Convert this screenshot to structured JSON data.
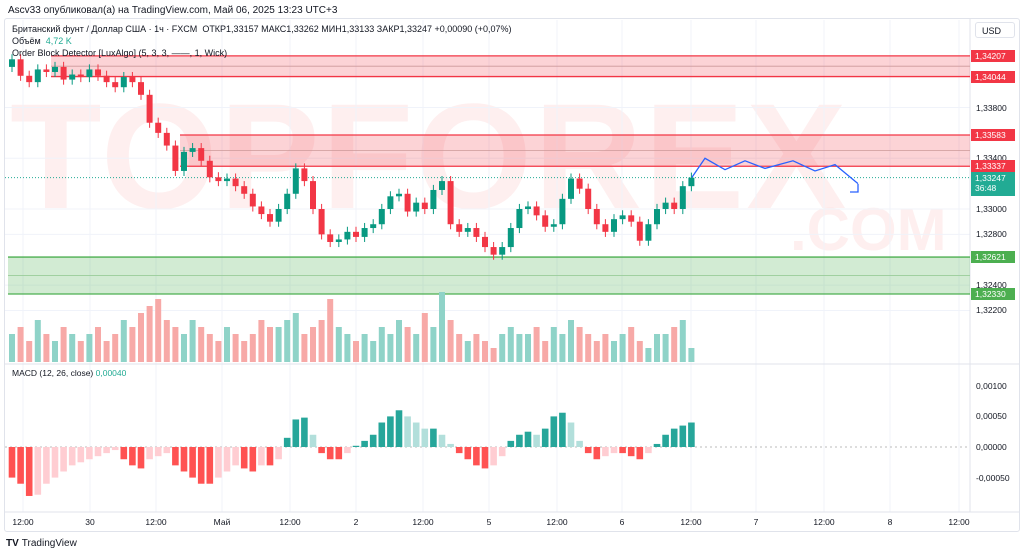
{
  "published": "Ascv33 опубликовал(а) на TradingView.com, Май 06, 2025 13:23 UTC+3",
  "legend": {
    "symbol": "Британский фунт / Доллар США · 1ч · FXCM",
    "ohlc": "ОТКР1,33157  МАКС1,33262  МИН1,33133  ЗАКР1,33247  +0,00090 (+0,07%)",
    "volume_label": "Объём",
    "volume_value": "4,72 K",
    "indicator": "Order Block Detector [LuxAlgo] (5, 3, 3, ——, 1, Wick)",
    "macd_label": "MACD (12, 26, close)",
    "macd_value": "0,00040"
  },
  "currency": "USD",
  "watermark": "TOPFOREX",
  "watermark2": ".COM",
  "price_axis": [
    "1,33800",
    "1,33400",
    "1,33000",
    "1,32800",
    "1,32400",
    "1,32200"
  ],
  "price_axis_values": [
    1.338,
    1.334,
    1.33,
    1.328,
    1.324,
    1.322
  ],
  "badges": [
    {
      "label": "1,34207",
      "value": 1.34207,
      "color": "#f23645"
    },
    {
      "label": "1,34044",
      "value": 1.34044,
      "color": "#f23645"
    },
    {
      "label": "1,33583",
      "value": 1.33583,
      "color": "#f23645"
    },
    {
      "label": "1,33337",
      "value": 1.33337,
      "color": "#f23645"
    },
    {
      "label": "1,32621",
      "value": 1.32621,
      "color": "#4caf50"
    },
    {
      "label": "1,32330",
      "value": 1.3233,
      "color": "#4caf50"
    }
  ],
  "last_price": {
    "label": "1,33247",
    "countdown": "36:48",
    "value": 1.33247,
    "color": "#22ab94"
  },
  "order_blocks": [
    {
      "type": "bearish",
      "top": 1.34207,
      "bottom": 1.34044,
      "start_bar": 5
    },
    {
      "type": "bearish",
      "top": 1.33583,
      "bottom": 1.33337,
      "start_bar": 20
    },
    {
      "type": "bullish",
      "top": 1.32621,
      "bottom": 1.3233,
      "start_bar": 0
    }
  ],
  "macd_axis": [
    "0,00100",
    "0,00050",
    "0,00000",
    "-0,00050"
  ],
  "macd_axis_values": [
    0.001,
    0.0005,
    0,
    -0.0005
  ],
  "time_axis": [
    "12:00",
    "30",
    "12:00",
    "Май",
    "12:00",
    "2",
    "12:00",
    "5",
    "12:00",
    "6",
    "12:00",
    "7",
    "12:00",
    "8",
    "12:00"
  ],
  "chart_data": {
    "type": "candlestick",
    "first_open": 1.3412,
    "close": [
      1.3418,
      1.3405,
      1.34,
      1.341,
      1.3408,
      1.3412,
      1.3402,
      1.3406,
      1.3404,
      1.341,
      1.3405,
      1.34,
      1.3396,
      1.3404,
      1.34,
      1.339,
      1.3368,
      1.336,
      1.335,
      1.333,
      1.3345,
      1.3348,
      1.3338,
      1.3325,
      1.3322,
      1.3324,
      1.3318,
      1.3312,
      1.3302,
      1.3296,
      1.329,
      1.33,
      1.3312,
      1.3332,
      1.3322,
      1.33,
      1.328,
      1.3274,
      1.3276,
      1.3282,
      1.3278,
      1.3285,
      1.3288,
      1.33,
      1.331,
      1.3312,
      1.3298,
      1.3305,
      1.33,
      1.3315,
      1.3322,
      1.3288,
      1.3282,
      1.3285,
      1.3278,
      1.327,
      1.3264,
      1.327,
      1.3285,
      1.33,
      1.3302,
      1.3295,
      1.3286,
      1.3288,
      1.3308,
      1.3324,
      1.3316,
      1.33,
      1.3288,
      1.3282,
      1.3292,
      1.3295,
      1.329,
      1.3275,
      1.3288,
      1.33,
      1.3305,
      1.33,
      1.3318,
      1.33247
    ],
    "volume": [
      4,
      5,
      3,
      6,
      4,
      3,
      5,
      4,
      3,
      4,
      5,
      3,
      4,
      6,
      5,
      7,
      8,
      9,
      6,
      5,
      4,
      6,
      5,
      4,
      3,
      5,
      4,
      3,
      4,
      6,
      5,
      5,
      6,
      7,
      4,
      5,
      6,
      9,
      5,
      4,
      3,
      4,
      3,
      5,
      4,
      6,
      5,
      4,
      7,
      5,
      10,
      6,
      4,
      3,
      4,
      3,
      2,
      4,
      5,
      4,
      4,
      5,
      3,
      5,
      4,
      6,
      5,
      4,
      3,
      4,
      3,
      4,
      5,
      3,
      2,
      4,
      4,
      5,
      6,
      2
    ],
    "macd_hist": [
      -0.0005,
      -0.0006,
      -0.0008,
      -0.00078,
      -0.0006,
      -0.0005,
      -0.0004,
      -0.0003,
      -0.00025,
      -0.0002,
      -0.00015,
      -0.0001,
      -5e-05,
      -0.0002,
      -0.0003,
      -0.00035,
      -0.0002,
      -0.00015,
      -0.0001,
      -0.0003,
      -0.0004,
      -0.0005,
      -0.0006,
      -0.0006,
      -0.0005,
      -0.0004,
      -0.0003,
      -0.00035,
      -0.0004,
      -0.0003,
      -0.0003,
      -0.0002,
      0.00015,
      0.00045,
      0.00048,
      0.0002,
      -0.0001,
      -0.0002,
      -0.0002,
      -0.0001,
      2e-05,
      0.0001,
      0.0002,
      0.0004,
      0.0005,
      0.0006,
      0.0005,
      0.0004,
      0.0003,
      0.0003,
      0.0002,
      5e-05,
      -0.0001,
      -0.0002,
      -0.0003,
      -0.00035,
      -0.0003,
      -0.00015,
      0.0001,
      0.0002,
      0.00025,
      0.0002,
      0.0003,
      0.0005,
      0.00056,
      0.0004,
      0.0001,
      -0.0001,
      -0.0002,
      -0.00015,
      -0.0001,
      -0.0001,
      -0.00015,
      -0.0002,
      -0.0001,
      5e-05,
      0.0002,
      0.0003,
      0.00035,
      0.0004
    ],
    "forecast": [
      1.3325,
      1.334,
      1.3331,
      1.3338,
      1.3332,
      1.3338,
      1.333,
      1.3335,
      1.332
    ],
    "colors": {
      "up": "#089981",
      "down": "#f23645",
      "vol_up": "#8fd3c8",
      "vol_down": "#f7a9a7",
      "forecast": "#2962ff"
    }
  }
}
